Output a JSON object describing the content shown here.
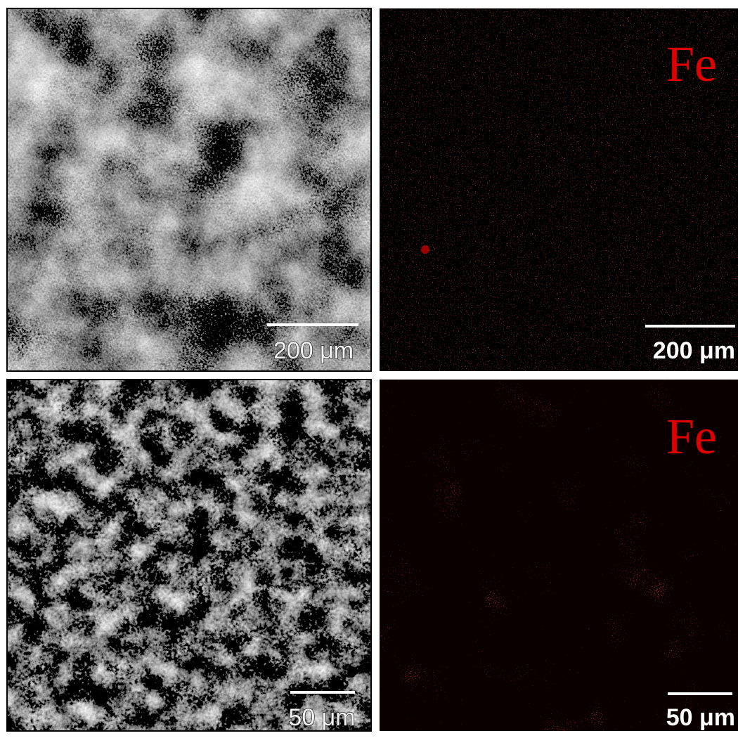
{
  "panels": [
    {
      "scale_bar": "200 μm"
    },
    {
      "element": "Fe",
      "scale_bar": "200 μm"
    },
    {
      "scale_bar": "50 μm"
    },
    {
      "element": "Fe",
      "scale_bar": "50 μm"
    }
  ]
}
